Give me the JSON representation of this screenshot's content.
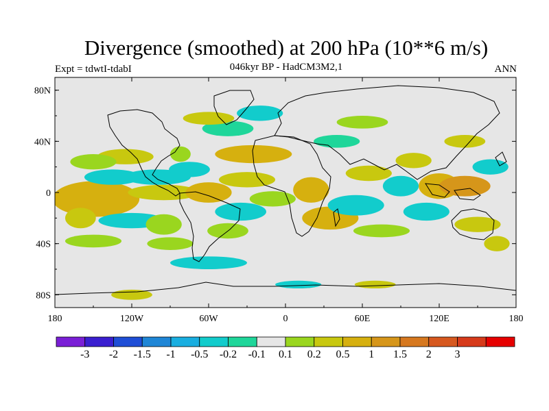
{
  "header": {
    "title": "Divergence (smoothed) at 200 hPa (10**6 m/s)",
    "subtitle": "046kyr BP - HadCM3M2,1",
    "experiment": "Expt = tdwtI-tdabI",
    "season": "ANN"
  },
  "map": {
    "projection": "cylindrical equidistant",
    "lon_range": [
      -180,
      180
    ],
    "lat_range": [
      -90,
      90
    ],
    "background_color": "#e6e6e6",
    "y_ticks": [
      {
        "value": 80,
        "label": "80N"
      },
      {
        "value": 40,
        "label": "40N"
      },
      {
        "value": 0,
        "label": "0"
      },
      {
        "value": -40,
        "label": "40S"
      },
      {
        "value": -80,
        "label": "80S"
      }
    ],
    "x_ticks": [
      {
        "value": -180,
        "label": "180"
      },
      {
        "value": -120,
        "label": "120W"
      },
      {
        "value": -60,
        "label": "60W"
      },
      {
        "value": 0,
        "label": "0"
      },
      {
        "value": 60,
        "label": "60E"
      },
      {
        "value": 120,
        "label": "120E"
      },
      {
        "value": 180,
        "label": "180"
      }
    ]
  },
  "colorbar": {
    "colors": [
      "#7a1fd6",
      "#3a1fd0",
      "#1f4ed6",
      "#1f86d6",
      "#19aee0",
      "#12cccc",
      "#1fd69a",
      "#e6e6e6",
      "#9ad61f",
      "#c8c80f",
      "#d6b00f",
      "#d6961a",
      "#d6781f",
      "#d6581f",
      "#d63a1a",
      "#e60000"
    ],
    "labels": [
      "-3",
      "-2",
      "-1.5",
      "-1",
      "-0.5",
      "-0.2",
      "-0.1",
      "0.1",
      "0.2",
      "0.5",
      "1",
      "1.5",
      "2",
      "3"
    ]
  },
  "field_patches": [
    {
      "lon": -140,
      "lat": -7,
      "rlon": 14,
      "rlat": 8,
      "level": 11
    },
    {
      "lon": -148,
      "lat": -5,
      "rlon": 34,
      "rlat": 14,
      "level": 10
    },
    {
      "lon": -135,
      "lat": 12,
      "rlon": 22,
      "rlat": 6,
      "level": 5
    },
    {
      "lon": -100,
      "lat": 12,
      "rlon": 26,
      "rlat": 6,
      "level": 5
    },
    {
      "lon": -125,
      "lat": 28,
      "rlon": 22,
      "rlat": 6,
      "level": 9
    },
    {
      "lon": -150,
      "lat": 24,
      "rlon": 18,
      "rlat": 6,
      "level": 8
    },
    {
      "lon": -95,
      "lat": 0,
      "rlon": 28,
      "rlat": 6,
      "level": 9
    },
    {
      "lon": -120,
      "lat": -22,
      "rlon": 26,
      "rlat": 6,
      "level": 5
    },
    {
      "lon": -95,
      "lat": -25,
      "rlon": 14,
      "rlat": 8,
      "level": 8
    },
    {
      "lon": -150,
      "lat": -38,
      "rlon": 22,
      "rlat": 5,
      "level": 8
    },
    {
      "lon": -90,
      "lat": -40,
      "rlon": 18,
      "rlat": 5,
      "level": 8
    },
    {
      "lon": -160,
      "lat": -20,
      "rlon": 12,
      "rlat": 8,
      "level": 9
    },
    {
      "lon": -60,
      "lat": 0,
      "rlon": 18,
      "rlat": 8,
      "level": 10
    },
    {
      "lon": -75,
      "lat": 18,
      "rlon": 16,
      "rlat": 6,
      "level": 5
    },
    {
      "lon": -82,
      "lat": 30,
      "rlon": 8,
      "rlat": 6,
      "level": 8
    },
    {
      "lon": -30,
      "lat": 10,
      "rlon": 22,
      "rlat": 6,
      "level": 9
    },
    {
      "lon": -25,
      "lat": 30,
      "rlon": 30,
      "rlat": 7,
      "level": 10
    },
    {
      "lon": -45,
      "lat": 50,
      "rlon": 20,
      "rlat": 6,
      "level": 6
    },
    {
      "lon": -60,
      "lat": 58,
      "rlon": 20,
      "rlat": 5,
      "level": 9
    },
    {
      "lon": -20,
      "lat": 62,
      "rlon": 18,
      "rlat": 6,
      "level": 5
    },
    {
      "lon": -35,
      "lat": -15,
      "rlon": 20,
      "rlat": 7,
      "level": 5
    },
    {
      "lon": -10,
      "lat": -5,
      "rlon": 18,
      "rlat": 6,
      "level": 8
    },
    {
      "lon": -45,
      "lat": -30,
      "rlon": 16,
      "rlat": 6,
      "level": 8
    },
    {
      "lon": -60,
      "lat": -55,
      "rlon": 30,
      "rlat": 5,
      "level": 5
    },
    {
      "lon": 20,
      "lat": 2,
      "rlon": 14,
      "rlat": 10,
      "level": 10
    },
    {
      "lon": 35,
      "lat": -20,
      "rlon": 22,
      "rlat": 9,
      "level": 10
    },
    {
      "lon": 55,
      "lat": -10,
      "rlon": 22,
      "rlat": 8,
      "level": 5
    },
    {
      "lon": 65,
      "lat": 15,
      "rlon": 18,
      "rlat": 6,
      "level": 9
    },
    {
      "lon": 75,
      "lat": -30,
      "rlon": 22,
      "rlat": 5,
      "level": 8
    },
    {
      "lon": 40,
      "lat": 40,
      "rlon": 18,
      "rlat": 5,
      "level": 6
    },
    {
      "lon": 60,
      "lat": 55,
      "rlon": 20,
      "rlat": 5,
      "level": 8
    },
    {
      "lon": 90,
      "lat": 5,
      "rlon": 14,
      "rlat": 8,
      "level": 5
    },
    {
      "lon": 100,
      "lat": 25,
      "rlon": 14,
      "rlat": 6,
      "level": 9
    },
    {
      "lon": 120,
      "lat": 5,
      "rlon": 16,
      "rlat": 10,
      "level": 10
    },
    {
      "lon": 140,
      "lat": 5,
      "rlon": 20,
      "rlat": 8,
      "level": 11
    },
    {
      "lon": 110,
      "lat": -15,
      "rlon": 18,
      "rlat": 7,
      "level": 5
    },
    {
      "lon": 150,
      "lat": -25,
      "rlon": 18,
      "rlat": 6,
      "level": 9
    },
    {
      "lon": 140,
      "lat": 40,
      "rlon": 16,
      "rlat": 5,
      "level": 9
    },
    {
      "lon": 160,
      "lat": 20,
      "rlon": 14,
      "rlat": 6,
      "level": 5
    },
    {
      "lon": 165,
      "lat": -40,
      "rlon": 10,
      "rlat": 6,
      "level": 9
    },
    {
      "lon": -120,
      "lat": -80,
      "rlon": 16,
      "rlat": 4,
      "level": 9
    },
    {
      "lon": 10,
      "lat": -72,
      "rlon": 18,
      "rlat": 3,
      "level": 5
    },
    {
      "lon": 70,
      "lat": -72,
      "rlon": 16,
      "rlat": 3,
      "level": 9
    }
  ]
}
